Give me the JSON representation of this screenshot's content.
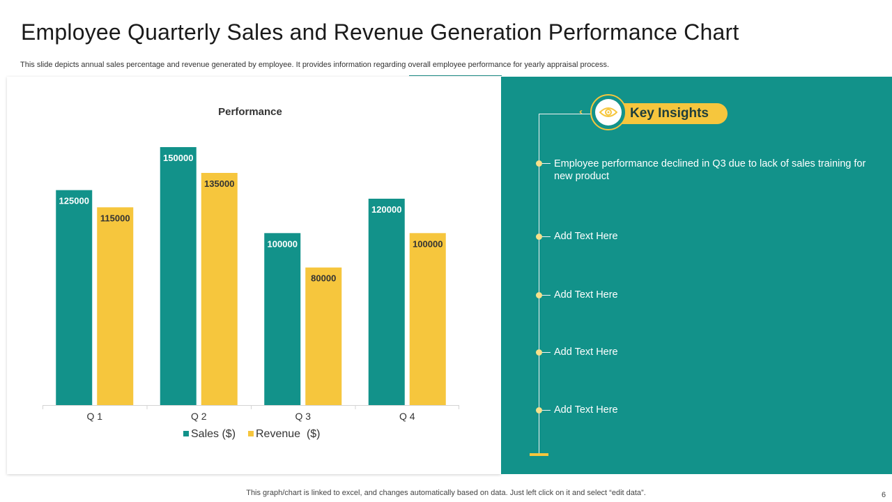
{
  "slide": {
    "title": "Employee Quarterly Sales and Revenue Generation Performance Chart",
    "subtitle": "This slide depicts annual sales percentage and revenue generated by employee. It provides information regarding overall employee performance for yearly appraisal process.",
    "footer": "This graph/chart is linked to excel, and changes automatically based on data. Just left click on it and select “edit data”.",
    "page_number": "6"
  },
  "colors": {
    "sales": "#12928a",
    "revenue": "#f6c63d",
    "panel": "#12928a"
  },
  "insights": {
    "heading": "Key Insights",
    "icon": "eye-icon",
    "items": [
      "Employee performance declined in Q3 due to lack of sales training for new product",
      "Add Text Here",
      "Add Text Here",
      "Add Text Here",
      "Add Text Here"
    ]
  },
  "chart_data": {
    "type": "bar",
    "title": "Performance",
    "categories": [
      "Q 1",
      "Q 2",
      "Q 3",
      "Q 4"
    ],
    "series": [
      {
        "name": "Sales ($)",
        "values": [
          125000,
          150000,
          100000,
          120000
        ]
      },
      {
        "name": "Revenue  ($)",
        "values": [
          115000,
          135000,
          80000,
          100000
        ]
      }
    ],
    "ylim": [
      0,
      150000
    ],
    "xlabel": "",
    "ylabel": "",
    "grid": false,
    "legend": "bottom"
  }
}
